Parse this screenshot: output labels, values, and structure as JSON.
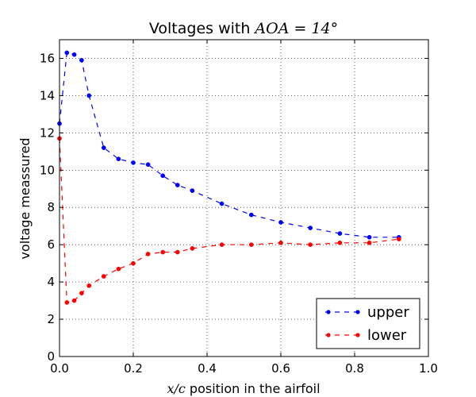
{
  "chart_data": {
    "type": "line",
    "title_prefix": "Voltages with ",
    "title_math": "AOA",
    "title_math_rest": " = 14°",
    "xlabel_math": "x/c",
    "xlabel_rest": " position in the airfoil",
    "ylabel": "voltage meassured",
    "xlim": [
      0.0,
      1.0
    ],
    "ylim": [
      0,
      17
    ],
    "xticks": [
      "0.0",
      "0.2",
      "0.4",
      "0.6",
      "0.8",
      "1.0"
    ],
    "yticks": [
      "0",
      "2",
      "4",
      "6",
      "8",
      "10",
      "12",
      "14",
      "16"
    ],
    "grid": true,
    "legend_position": "lower right",
    "series": [
      {
        "name": "upper",
        "color": "#0000ff",
        "x": [
          0.0,
          0.02,
          0.04,
          0.06,
          0.08,
          0.12,
          0.16,
          0.2,
          0.24,
          0.28,
          0.32,
          0.36,
          0.44,
          0.52,
          0.6,
          0.68,
          0.76,
          0.84,
          0.92
        ],
        "y": [
          12.5,
          16.3,
          16.2,
          15.9,
          14.0,
          11.2,
          10.6,
          10.4,
          10.3,
          9.7,
          9.2,
          8.9,
          8.2,
          7.6,
          7.2,
          6.9,
          6.6,
          6.4,
          6.4
        ]
      },
      {
        "name": "lower",
        "color": "#ff0000",
        "x": [
          0.0,
          0.02,
          0.04,
          0.06,
          0.08,
          0.12,
          0.16,
          0.2,
          0.24,
          0.28,
          0.32,
          0.36,
          0.44,
          0.52,
          0.6,
          0.68,
          0.76,
          0.84,
          0.92
        ],
        "y": [
          11.7,
          2.9,
          3.0,
          3.4,
          3.8,
          4.3,
          4.7,
          5.0,
          5.5,
          5.6,
          5.6,
          5.8,
          6.0,
          6.0,
          6.1,
          6.0,
          6.1,
          6.1,
          6.3
        ]
      }
    ]
  }
}
